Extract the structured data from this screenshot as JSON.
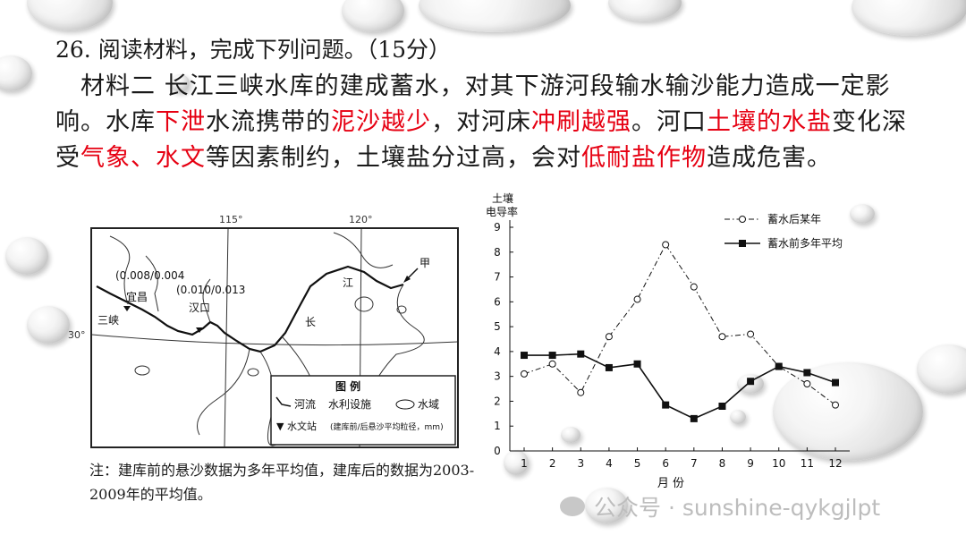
{
  "question": {
    "title": "26.  阅读材料，完成下列问题。（15分）",
    "body_parts": [
      {
        "text": "材料二  长江三峡水库的建成蓄水，对其下游河段输水输沙能力造成一定影响。水库",
        "red": false
      },
      {
        "text": "下泄",
        "red": true
      },
      {
        "text": "水流携带的",
        "red": false
      },
      {
        "text": "泥沙越少",
        "red": true
      },
      {
        "text": "，对河床",
        "red": false
      },
      {
        "text": "冲刷越强",
        "red": true
      },
      {
        "text": "。河口",
        "red": false
      },
      {
        "text": "土壤的水盐",
        "red": true
      },
      {
        "text": "变化深受",
        "red": false
      },
      {
        "text": "气象、水文",
        "red": true
      },
      {
        "text": "等因素制约，土壤盐分过高，会对",
        "red": false
      },
      {
        "text": "低耐盐作物",
        "red": true
      },
      {
        "text": "造成危害。",
        "red": false
      }
    ]
  },
  "map": {
    "lon_115": "115°",
    "lon_120": "120°",
    "lat_30": "30°",
    "station_yichang_value": "(0.008/0.004",
    "station_hankou_value": "(0.010/0.013",
    "label_yichang": "宜昌",
    "label_sanxia": "三峡",
    "label_hankou": "汉口",
    "label_jia": "甲",
    "river_char_1": "江",
    "river_char_2": "长",
    "legend": {
      "title": "图    例",
      "river": "河流",
      "facility": "水利设施",
      "water": "水域",
      "station": "▼ 水文站",
      "station_note": "(建库前/后悬沙平均粒径，mm)"
    }
  },
  "note": "注：建库前的悬沙数据为多年平均值，建库后的数据为2003-2009年的平均值。",
  "chart_data": {
    "type": "line",
    "title": "",
    "ylabel": "土壤电导率",
    "xlabel": "月  份",
    "x": [
      1,
      2,
      3,
      4,
      5,
      6,
      7,
      8,
      9,
      10,
      11,
      12
    ],
    "ylim": [
      0,
      9
    ],
    "yticks": [
      0,
      1,
      2,
      3,
      4,
      5,
      6,
      7,
      8,
      9
    ],
    "legend_position": "top-right",
    "series": [
      {
        "name": "蓄水后某年",
        "style": "dash-dot-open-circle",
        "values": [
          3.1,
          3.5,
          2.35,
          4.6,
          6.1,
          8.3,
          6.6,
          4.6,
          4.7,
          3.4,
          2.7,
          1.85
        ]
      },
      {
        "name": "蓄水前多年平均",
        "style": "solid-filled-square",
        "values": [
          3.85,
          3.85,
          3.9,
          3.35,
          3.5,
          1.85,
          1.3,
          1.8,
          2.8,
          3.4,
          3.15,
          2.75
        ]
      }
    ]
  },
  "watermark": "公众号 · sunshine-qykgjlpt"
}
